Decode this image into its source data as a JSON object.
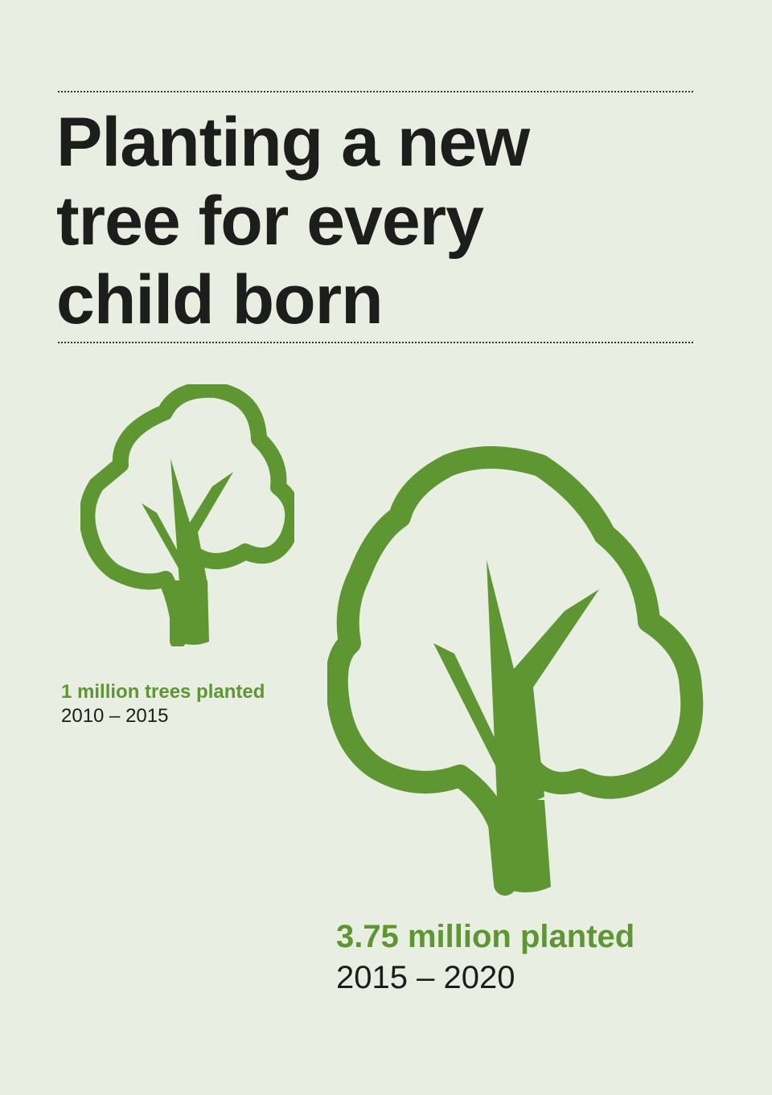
{
  "title": {
    "lines": [
      "Planting a new",
      "tree for every",
      "child born"
    ]
  },
  "stats": [
    {
      "amount": "1 million trees planted",
      "period": "2010 – 2015"
    },
    {
      "amount": "3.75 million planted",
      "period": "2015 – 2020"
    }
  ],
  "icons": {
    "small": "tree-icon",
    "large": "tree-icon"
  },
  "colors": {
    "background": "#e8eee1",
    "tree_green": "#5e9732",
    "text": "#1d1d1b"
  }
}
